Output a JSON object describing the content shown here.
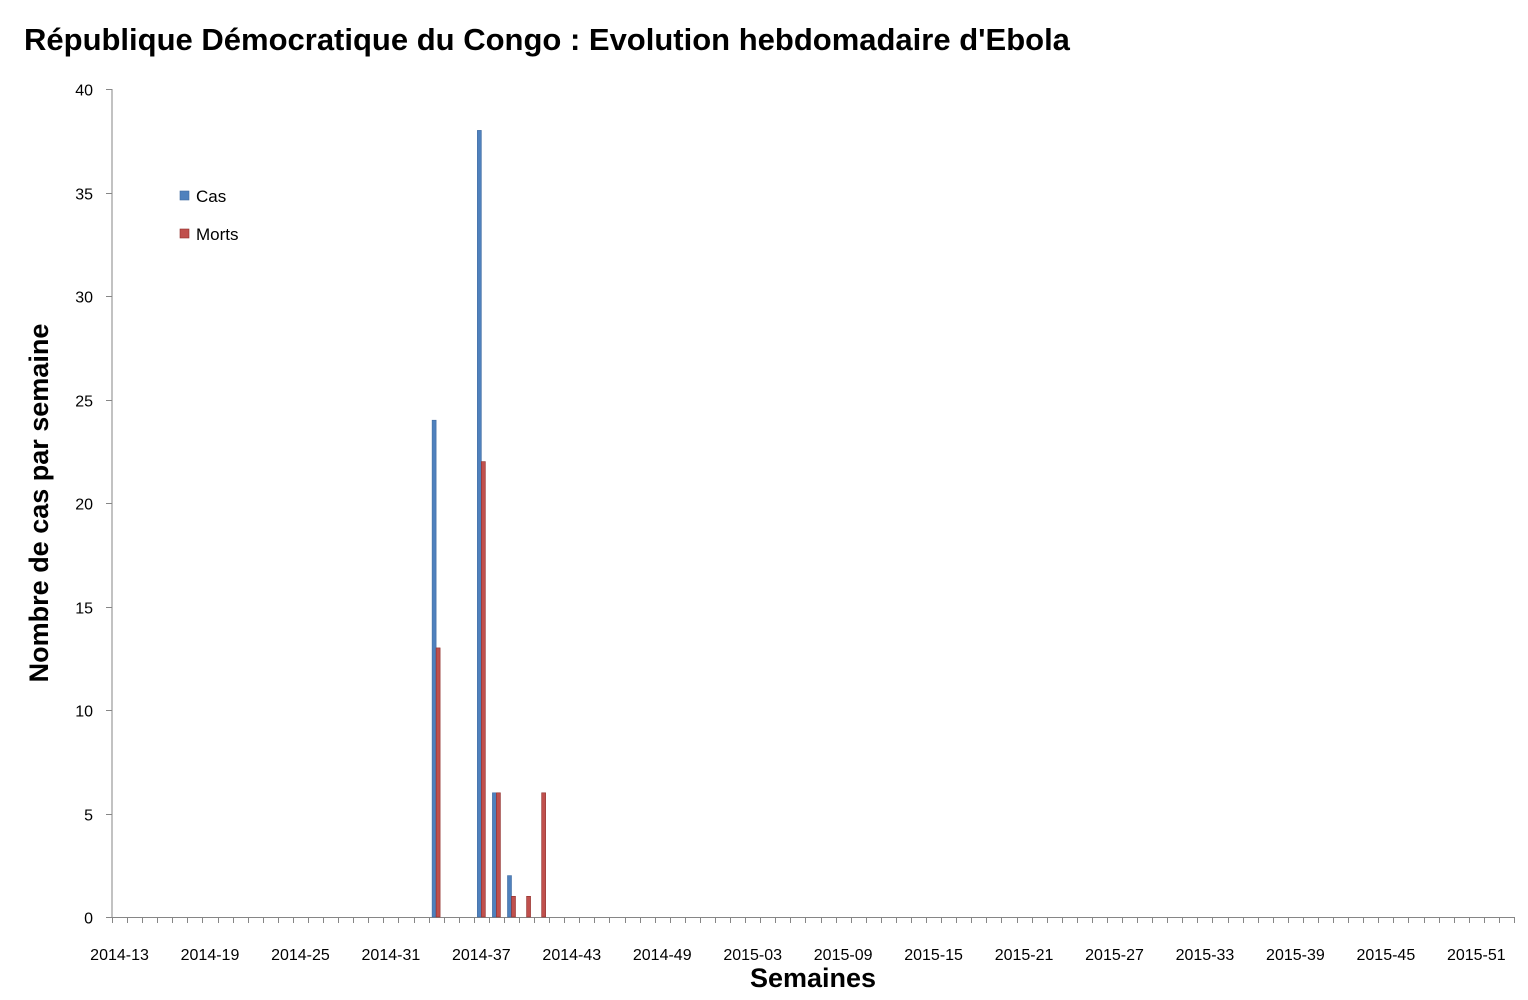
{
  "title": "République Démocratique du Congo : Evolution hebdomadaire d'Ebola",
  "chart_data": {
    "type": "bar",
    "title": "République Démocratique du Congo : Evolution hebdomadaire d'Ebola",
    "xlabel": "Semaines",
    "ylabel": "Nombre de cas par semaine",
    "ylim": [
      0,
      40
    ],
    "yticks": [
      0,
      5,
      10,
      15,
      20,
      25,
      30,
      35,
      40
    ],
    "categories": [
      "2014-13",
      "2014-14",
      "2014-15",
      "2014-16",
      "2014-17",
      "2014-18",
      "2014-19",
      "2014-20",
      "2014-21",
      "2014-22",
      "2014-23",
      "2014-24",
      "2014-25",
      "2014-26",
      "2014-27",
      "2014-28",
      "2014-29",
      "2014-30",
      "2014-31",
      "2014-32",
      "2014-33",
      "2014-34",
      "2014-35",
      "2014-36",
      "2014-37",
      "2014-38",
      "2014-39",
      "2014-40",
      "2014-41",
      "2014-42",
      "2014-43",
      "2014-44",
      "2014-45",
      "2014-46",
      "2014-47",
      "2014-48",
      "2014-49",
      "2014-50",
      "2014-51",
      "2014-52",
      "2015-01",
      "2015-02",
      "2015-03",
      "2015-04",
      "2015-05",
      "2015-06",
      "2015-07",
      "2015-08",
      "2015-09",
      "2015-10",
      "2015-11",
      "2015-12",
      "2015-13",
      "2015-14",
      "2015-15",
      "2015-16",
      "2015-17",
      "2015-18",
      "2015-19",
      "2015-20",
      "2015-21",
      "2015-22",
      "2015-23",
      "2015-24",
      "2015-25",
      "2015-26",
      "2015-27",
      "2015-28",
      "2015-29",
      "2015-30",
      "2015-31",
      "2015-32",
      "2015-33",
      "2015-34",
      "2015-35",
      "2015-36",
      "2015-37",
      "2015-38",
      "2015-39",
      "2015-40",
      "2015-41",
      "2015-42",
      "2015-43",
      "2015-44",
      "2015-45",
      "2015-46",
      "2015-47",
      "2015-48",
      "2015-49",
      "2015-50",
      "2015-51",
      "2015-52",
      "2015-53"
    ],
    "xtick_labels": [
      "2014-13",
      "2014-19",
      "2014-25",
      "2014-31",
      "2014-37",
      "2014-43",
      "2014-49",
      "2015-03",
      "2015-09",
      "2015-15",
      "2015-21",
      "2015-27",
      "2015-33",
      "2015-39",
      "2015-45",
      "2015-51"
    ],
    "series": [
      {
        "name": "Cas",
        "color": "#4f81bd",
        "values": [
          0,
          0,
          0,
          0,
          0,
          0,
          0,
          0,
          0,
          0,
          0,
          0,
          0,
          0,
          0,
          0,
          0,
          0,
          0,
          0,
          0,
          24,
          0,
          0,
          38,
          6,
          2,
          0,
          0,
          0,
          0,
          0,
          0,
          0,
          0,
          0,
          0,
          0,
          0,
          0,
          0,
          0,
          0,
          0,
          0,
          0,
          0,
          0,
          0,
          0,
          0,
          0,
          0,
          0,
          0,
          0,
          0,
          0,
          0,
          0,
          0,
          0,
          0,
          0,
          0,
          0,
          0,
          0,
          0,
          0,
          0,
          0,
          0,
          0,
          0,
          0,
          0,
          0,
          0,
          0,
          0,
          0,
          0,
          0,
          0,
          0,
          0,
          0,
          0,
          0,
          0,
          0,
          0
        ]
      },
      {
        "name": "Morts",
        "color": "#c0504d",
        "values": [
          0,
          0,
          0,
          0,
          0,
          0,
          0,
          0,
          0,
          0,
          0,
          0,
          0,
          0,
          0,
          0,
          0,
          0,
          0,
          0,
          0,
          13,
          0,
          0,
          22,
          6,
          1,
          1,
          6,
          0,
          0,
          0,
          0,
          0,
          0,
          0,
          0,
          0,
          0,
          0,
          0,
          0,
          0,
          0,
          0,
          0,
          0,
          0,
          0,
          0,
          0,
          0,
          0,
          0,
          0,
          0,
          0,
          0,
          0,
          0,
          0,
          0,
          0,
          0,
          0,
          0,
          0,
          0,
          0,
          0,
          0,
          0,
          0,
          0,
          0,
          0,
          0,
          0,
          0,
          0,
          0,
          0,
          0,
          0,
          0,
          0,
          0,
          0,
          0,
          0,
          0,
          0,
          0
        ]
      }
    ],
    "legend_position": "top-left",
    "grid": false
  }
}
